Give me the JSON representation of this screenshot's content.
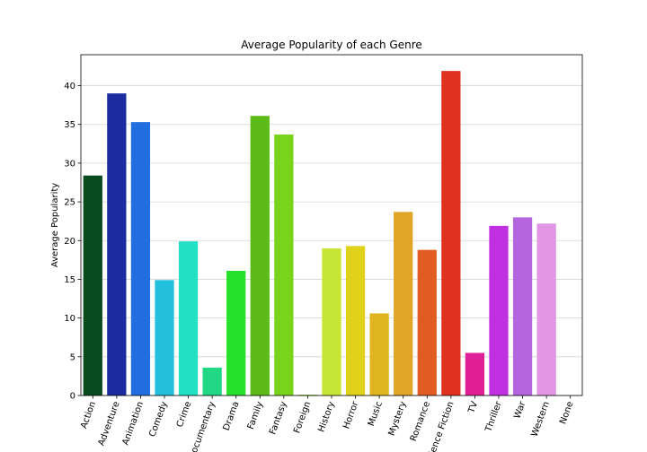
{
  "chart_data": {
    "type": "bar",
    "title": "Average Popularity of each Genre",
    "xlabel": "",
    "ylabel": "Average Popularity",
    "ylim": [
      0,
      44
    ],
    "yticks": [
      0,
      5,
      10,
      15,
      20,
      25,
      30,
      35,
      40
    ],
    "grid": "y",
    "categories": [
      "Action",
      "Adventure",
      "Animation",
      "Comedy",
      "Crime",
      "Documentary",
      "Drama",
      "Family",
      "Fantasy",
      "Foreign",
      "History",
      "Horror",
      "Music",
      "Mystery",
      "Romance",
      "Science Fiction",
      "TV",
      "Thriller",
      "War",
      "Western",
      "None"
    ],
    "values": [
      28.4,
      39.0,
      35.3,
      14.9,
      19.9,
      3.6,
      16.1,
      36.1,
      33.7,
      0.1,
      19.0,
      19.3,
      10.6,
      23.7,
      18.8,
      41.9,
      5.5,
      21.9,
      23.0,
      22.2,
      0.0
    ],
    "colors": [
      "#0a4a1f",
      "#1b2ba0",
      "#216ee0",
      "#22c0dc",
      "#22e0c4",
      "#22d884",
      "#26e02a",
      "#5cbb18",
      "#77d41a",
      "#8fd41a",
      "#c6e433",
      "#e0d21a",
      "#e0b41e",
      "#e0a427",
      "#e05c22",
      "#e0301e",
      "#e01e96",
      "#c030e0",
      "#b466e0",
      "#e096e4",
      "#e8a0e8"
    ]
  }
}
